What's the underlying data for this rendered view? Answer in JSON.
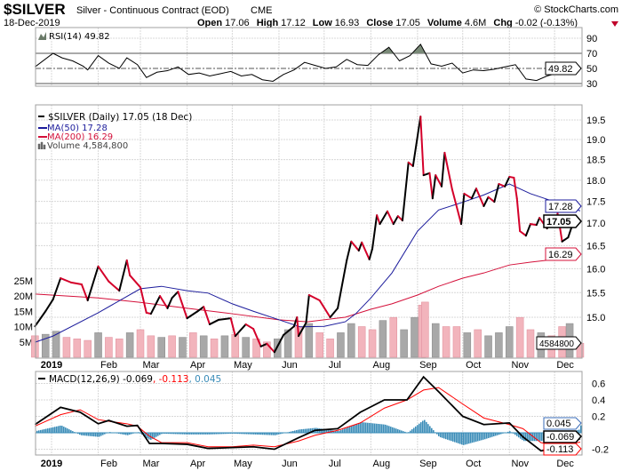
{
  "header": {
    "symbol": "$SILVER",
    "name": "Silver - Continuous Contract (EOD)",
    "exchange": "CME",
    "copyright": "© StockCharts.com",
    "date": "18-Dec-2019",
    "open_label": "Open",
    "open": "17.06",
    "high_label": "High",
    "high": "17.12",
    "low_label": "Low",
    "low": "16.93",
    "close_label": "Close",
    "close": "17.05",
    "volume_label": "Volume",
    "volume": "4.6M",
    "chg_label": "Chg",
    "chg": "-0.02 (-0.13%)",
    "chg_direction": "down"
  },
  "colors": {
    "up": "#000000",
    "down": "#d4002a",
    "ma50": "#1c1c9c",
    "ma200": "#d4103a",
    "vol_up": "#a8a8a8",
    "vol_down": "#f2b4bc",
    "macd": "#000000",
    "signal": "#ff0000",
    "hist": "#3a8cb8",
    "rsi_fill": "#7a8a78"
  },
  "chart_data": [
    {
      "type": "line",
      "panel": "rsi",
      "legend": "RSI(14) 49.82",
      "last_value": "49.82",
      "y_ticks": [
        "90",
        "70",
        "50",
        "30"
      ],
      "overbought": 70,
      "oversold": 30,
      "ylim": [
        10,
        100
      ],
      "points": [
        [
          "2018-12-21",
          52
        ],
        [
          "2019-01-02",
          70
        ],
        [
          "2019-01-08",
          64
        ],
        [
          "2019-01-15",
          60
        ],
        [
          "2019-01-22",
          53
        ],
        [
          "2019-01-25",
          48
        ],
        [
          "2019-02-01",
          67
        ],
        [
          "2019-02-08",
          57
        ],
        [
          "2019-02-15",
          50
        ],
        [
          "2019-02-20",
          64
        ],
        [
          "2019-02-27",
          55
        ],
        [
          "2019-03-05",
          38
        ],
        [
          "2019-03-12",
          45
        ],
        [
          "2019-03-19",
          47
        ],
        [
          "2019-03-26",
          52
        ],
        [
          "2019-04-02",
          42
        ],
        [
          "2019-04-09",
          44
        ],
        [
          "2019-04-16",
          40
        ],
        [
          "2019-04-23",
          43
        ],
        [
          "2019-04-30",
          46
        ],
        [
          "2019-05-07",
          40
        ],
        [
          "2019-05-14",
          42
        ],
        [
          "2019-05-21",
          35
        ],
        [
          "2019-05-28",
          33
        ],
        [
          "2019-06-04",
          42
        ],
        [
          "2019-06-11",
          48
        ],
        [
          "2019-06-18",
          58
        ],
        [
          "2019-06-25",
          54
        ],
        [
          "2019-07-02",
          50
        ],
        [
          "2019-07-09",
          52
        ],
        [
          "2019-07-16",
          62
        ],
        [
          "2019-07-23",
          55
        ],
        [
          "2019-07-30",
          54
        ],
        [
          "2019-08-06",
          68
        ],
        [
          "2019-08-13",
          78
        ],
        [
          "2019-08-20",
          60
        ],
        [
          "2019-08-27",
          67
        ],
        [
          "2019-09-03",
          82
        ],
        [
          "2019-09-10",
          56
        ],
        [
          "2019-09-17",
          53
        ],
        [
          "2019-09-24",
          57
        ],
        [
          "2019-10-01",
          44
        ],
        [
          "2019-10-08",
          48
        ],
        [
          "2019-10-15",
          47
        ],
        [
          "2019-10-22",
          49
        ],
        [
          "2019-10-29",
          52
        ],
        [
          "2019-11-05",
          55
        ],
        [
          "2019-11-12",
          36
        ],
        [
          "2019-11-19",
          34
        ],
        [
          "2019-11-26",
          40
        ],
        [
          "2019-12-03",
          44
        ],
        [
          "2019-12-10",
          42
        ],
        [
          "2019-12-18",
          49.82
        ]
      ]
    },
    {
      "type": "line",
      "panel": "price",
      "scale": "log",
      "legend": {
        "price": "$SILVER (Daily) 17.05 (18 Dec)",
        "ma50": "MA(50) 17.28",
        "ma200": "MA(200) 16.29",
        "volume": "Volume 4,584,800"
      },
      "y_ticks": [
        "15.0",
        "15.5",
        "16.0",
        "16.5",
        "17.0",
        "17.5",
        "18.0",
        "18.5",
        "19.0",
        "19.5"
      ],
      "volume_ticks": [
        "5M",
        "10M",
        "15M",
        "20M",
        "25M"
      ],
      "x_ticks": [
        "2019",
        "Feb",
        "Mar",
        "Apr",
        "May",
        "Jun",
        "Jul",
        "Aug",
        "Sep",
        "Oct",
        "Nov",
        "Dec"
      ],
      "last_labels": {
        "ma50": "17.28",
        "close": "17.05",
        "ma200": "16.29",
        "volume": "4584800"
      },
      "close": [
        [
          "2018-12-21",
          14.82
        ],
        [
          "2018-12-28",
          15.12
        ],
        [
          "2019-01-02",
          15.36
        ],
        [
          "2019-01-07",
          15.8
        ],
        [
          "2019-01-14",
          15.71
        ],
        [
          "2019-01-21",
          15.67
        ],
        [
          "2019-01-25",
          15.34
        ],
        [
          "2019-02-01",
          16.05
        ],
        [
          "2019-02-08",
          15.73
        ],
        [
          "2019-02-15",
          15.54
        ],
        [
          "2019-02-20",
          16.18
        ],
        [
          "2019-02-22",
          15.86
        ],
        [
          "2019-03-01",
          15.61
        ],
        [
          "2019-03-05",
          15.09
        ],
        [
          "2019-03-08",
          15.07
        ],
        [
          "2019-03-14",
          15.43
        ],
        [
          "2019-03-19",
          15.18
        ],
        [
          "2019-03-22",
          15.39
        ],
        [
          "2019-03-26",
          15.52
        ],
        [
          "2019-04-01",
          14.98
        ],
        [
          "2019-04-08",
          15.12
        ],
        [
          "2019-04-12",
          15.21
        ],
        [
          "2019-04-16",
          14.86
        ],
        [
          "2019-04-22",
          14.95
        ],
        [
          "2019-04-30",
          14.98
        ],
        [
          "2019-05-03",
          14.63
        ],
        [
          "2019-05-10",
          14.86
        ],
        [
          "2019-05-15",
          14.77
        ],
        [
          "2019-05-20",
          14.43
        ],
        [
          "2019-05-24",
          14.48
        ],
        [
          "2019-05-29",
          14.32
        ],
        [
          "2019-06-04",
          14.65
        ],
        [
          "2019-06-11",
          14.82
        ],
        [
          "2019-06-13",
          15.0
        ],
        [
          "2019-06-14",
          14.63
        ],
        [
          "2019-06-19",
          14.89
        ],
        [
          "2019-06-21",
          15.45
        ],
        [
          "2019-06-28",
          15.34
        ],
        [
          "2019-07-05",
          15.0
        ],
        [
          "2019-07-10",
          15.18
        ],
        [
          "2019-07-16",
          16.18
        ],
        [
          "2019-07-19",
          16.59
        ],
        [
          "2019-07-24",
          16.39
        ],
        [
          "2019-07-26",
          16.57
        ],
        [
          "2019-07-31",
          16.2
        ],
        [
          "2019-08-02",
          16.43
        ],
        [
          "2019-08-05",
          17.18
        ],
        [
          "2019-08-07",
          16.98
        ],
        [
          "2019-08-12",
          17.27
        ],
        [
          "2019-08-16",
          16.98
        ],
        [
          "2019-08-19",
          17.16
        ],
        [
          "2019-08-22",
          17.06
        ],
        [
          "2019-08-26",
          18.43
        ],
        [
          "2019-08-29",
          18.34
        ],
        [
          "2019-09-03",
          19.59
        ],
        [
          "2019-09-05",
          18.12
        ],
        [
          "2019-09-09",
          18.17
        ],
        [
          "2019-09-11",
          17.57
        ],
        [
          "2019-09-13",
          18.12
        ],
        [
          "2019-09-17",
          17.85
        ],
        [
          "2019-09-19",
          18.67
        ],
        [
          "2019-09-24",
          17.78
        ],
        [
          "2019-09-30",
          16.98
        ],
        [
          "2019-10-02",
          17.68
        ],
        [
          "2019-10-07",
          17.57
        ],
        [
          "2019-10-10",
          17.8
        ],
        [
          "2019-10-15",
          17.39
        ],
        [
          "2019-10-18",
          17.6
        ],
        [
          "2019-10-22",
          17.49
        ],
        [
          "2019-10-25",
          17.91
        ],
        [
          "2019-10-29",
          17.85
        ],
        [
          "2019-11-01",
          18.08
        ],
        [
          "2019-11-04",
          18.06
        ],
        [
          "2019-11-06",
          17.57
        ],
        [
          "2019-11-08",
          16.82
        ],
        [
          "2019-11-12",
          16.72
        ],
        [
          "2019-11-15",
          16.98
        ],
        [
          "2019-11-19",
          16.96
        ],
        [
          "2019-11-21",
          17.12
        ],
        [
          "2019-11-26",
          16.88
        ],
        [
          "2019-11-29",
          17.08
        ],
        [
          "2019-12-02",
          16.96
        ],
        [
          "2019-12-03",
          17.22
        ],
        [
          "2019-12-04",
          17.02
        ],
        [
          "2019-12-06",
          16.59
        ],
        [
          "2019-12-10",
          16.68
        ],
        [
          "2019-12-13",
          16.98
        ],
        [
          "2019-12-16",
          17.12
        ],
        [
          "2019-12-18",
          17.05
        ]
      ],
      "ma50": [
        [
          "2018-12-21",
          14.51
        ],
        [
          "2019-01-02",
          14.63
        ],
        [
          "2019-02-01",
          15.09
        ],
        [
          "2019-03-01",
          15.58
        ],
        [
          "2019-03-15",
          15.63
        ],
        [
          "2019-04-01",
          15.54
        ],
        [
          "2019-04-15",
          15.49
        ],
        [
          "2019-05-01",
          15.27
        ],
        [
          "2019-05-15",
          15.12
        ],
        [
          "2019-06-01",
          14.95
        ],
        [
          "2019-06-15",
          14.81
        ],
        [
          "2019-07-01",
          14.82
        ],
        [
          "2019-07-15",
          14.91
        ],
        [
          "2019-07-22",
          15.07
        ],
        [
          "2019-08-01",
          15.39
        ],
        [
          "2019-08-15",
          15.91
        ],
        [
          "2019-09-01",
          16.82
        ],
        [
          "2019-09-15",
          17.3
        ],
        [
          "2019-10-01",
          17.48
        ],
        [
          "2019-10-15",
          17.65
        ],
        [
          "2019-11-01",
          17.91
        ],
        [
          "2019-11-15",
          17.68
        ],
        [
          "2019-12-01",
          17.49
        ],
        [
          "2019-12-10",
          17.36
        ],
        [
          "2019-12-18",
          17.28
        ]
      ],
      "ma200": [
        [
          "2018-12-21",
          15.47
        ],
        [
          "2019-02-01",
          15.39
        ],
        [
          "2019-03-01",
          15.3
        ],
        [
          "2019-04-01",
          15.18
        ],
        [
          "2019-05-01",
          15.07
        ],
        [
          "2019-06-01",
          14.95
        ],
        [
          "2019-06-20",
          14.91
        ],
        [
          "2019-07-15",
          15.0
        ],
        [
          "2019-08-01",
          15.16
        ],
        [
          "2019-08-15",
          15.27
        ],
        [
          "2019-09-01",
          15.45
        ],
        [
          "2019-09-15",
          15.63
        ],
        [
          "2019-10-01",
          15.8
        ],
        [
          "2019-10-15",
          15.91
        ],
        [
          "2019-11-01",
          16.08
        ],
        [
          "2019-11-15",
          16.14
        ],
        [
          "2019-12-01",
          16.2
        ],
        [
          "2019-12-18",
          16.29
        ]
      ],
      "volume_millions": [
        [
          "2018-12-21",
          7,
          "down"
        ],
        [
          "2018-12-28",
          7.5,
          "up"
        ],
        [
          "2019-01-04",
          8.5,
          "up"
        ],
        [
          "2019-01-11",
          6.5,
          "down"
        ],
        [
          "2019-01-18",
          6,
          "down"
        ],
        [
          "2019-01-25",
          5.5,
          "down"
        ],
        [
          "2019-02-01",
          8,
          "up"
        ],
        [
          "2019-02-08",
          6.5,
          "down"
        ],
        [
          "2019-02-15",
          6,
          "down"
        ],
        [
          "2019-02-22",
          8,
          "up"
        ],
        [
          "2019-03-01",
          9,
          "down"
        ],
        [
          "2019-03-08",
          7,
          "down"
        ],
        [
          "2019-03-15",
          6.5,
          "up"
        ],
        [
          "2019-03-22",
          7,
          "down"
        ],
        [
          "2019-03-29",
          6.5,
          "up"
        ],
        [
          "2019-04-05",
          8,
          "down"
        ],
        [
          "2019-04-12",
          7,
          "up"
        ],
        [
          "2019-04-19",
          6,
          "down"
        ],
        [
          "2019-04-26",
          7,
          "up"
        ],
        [
          "2019-05-03",
          7.5,
          "down"
        ],
        [
          "2019-05-10",
          6.5,
          "up"
        ],
        [
          "2019-05-17",
          6,
          "down"
        ],
        [
          "2019-05-24",
          5,
          "down"
        ],
        [
          "2019-05-31",
          6,
          "up"
        ],
        [
          "2019-06-07",
          9,
          "up"
        ],
        [
          "2019-06-14",
          10,
          "down"
        ],
        [
          "2019-06-21",
          11,
          "up"
        ],
        [
          "2019-06-28",
          8,
          "down"
        ],
        [
          "2019-07-05",
          6,
          "down"
        ],
        [
          "2019-07-12",
          8,
          "up"
        ],
        [
          "2019-07-19",
          11,
          "up"
        ],
        [
          "2019-07-26",
          10,
          "down"
        ],
        [
          "2019-08-02",
          9,
          "down"
        ],
        [
          "2019-08-09",
          12,
          "up"
        ],
        [
          "2019-08-16",
          13,
          "down"
        ],
        [
          "2019-08-23",
          9,
          "up"
        ],
        [
          "2019-08-30",
          13,
          "up"
        ],
        [
          "2019-09-04",
          17,
          "down"
        ],
        [
          "2019-09-06",
          18,
          "down"
        ],
        [
          "2019-09-13",
          11,
          "up"
        ],
        [
          "2019-09-20",
          10,
          "down"
        ],
        [
          "2019-09-27",
          10,
          "down"
        ],
        [
          "2019-10-04",
          8,
          "up"
        ],
        [
          "2019-10-11",
          9,
          "down"
        ],
        [
          "2019-10-18",
          7,
          "up"
        ],
        [
          "2019-10-25",
          8,
          "up"
        ],
        [
          "2019-11-01",
          10,
          "up"
        ],
        [
          "2019-11-08",
          13,
          "down"
        ],
        [
          "2019-11-15",
          9,
          "down"
        ],
        [
          "2019-11-22",
          8,
          "up"
        ],
        [
          "2019-11-29",
          7,
          "down"
        ],
        [
          "2019-12-06",
          10,
          "down"
        ],
        [
          "2019-12-11",
          11,
          "up"
        ],
        [
          "2019-12-18",
          4.58,
          "down"
        ]
      ]
    },
    {
      "type": "line",
      "panel": "macd",
      "legend": {
        "name": "MACD(12,26,9)",
        "macd": "-0.069",
        "signal": ", -0.113",
        "hist": ", 0.045"
      },
      "last_labels": {
        "hist": "0.045",
        "macd": "-0.069",
        "signal": "-0.113"
      },
      "y_ticks": [
        "0.6",
        "0.4",
        "0.2",
        "-0.2"
      ],
      "points": [
        [
          "2018-12-21",
          0.1,
          0.08
        ],
        [
          "2019-01-07",
          0.31,
          0.22
        ],
        [
          "2019-01-20",
          0.25,
          0.28
        ],
        [
          "2019-02-01",
          0.11,
          0.16
        ],
        [
          "2019-02-08",
          0.15,
          0.14
        ],
        [
          "2019-02-20",
          0.08,
          0.11
        ],
        [
          "2019-02-27",
          0.09,
          0.08
        ],
        [
          "2019-03-07",
          -0.13,
          -0.04
        ],
        [
          "2019-03-15",
          -0.13,
          -0.12
        ],
        [
          "2019-04-01",
          -0.14,
          -0.12
        ],
        [
          "2019-04-15",
          -0.19,
          -0.17
        ],
        [
          "2019-05-01",
          -0.18,
          -0.17
        ],
        [
          "2019-05-15",
          -0.17,
          -0.15
        ],
        [
          "2019-05-29",
          -0.2,
          -0.17
        ],
        [
          "2019-06-14",
          -0.06,
          -0.1
        ],
        [
          "2019-06-25",
          0.03,
          -0.03
        ],
        [
          "2019-07-10",
          0.05,
          0.03
        ],
        [
          "2019-07-25",
          0.25,
          0.12
        ],
        [
          "2019-08-10",
          0.4,
          0.3
        ],
        [
          "2019-08-25",
          0.4,
          0.4
        ],
        [
          "2019-09-05",
          0.68,
          0.52
        ],
        [
          "2019-09-15",
          0.5,
          0.55
        ],
        [
          "2019-10-01",
          0.2,
          0.35
        ],
        [
          "2019-10-15",
          0.1,
          0.18
        ],
        [
          "2019-11-01",
          0.12,
          0.1
        ],
        [
          "2019-11-10",
          -0.05,
          0.05
        ],
        [
          "2019-11-22",
          -0.22,
          -0.12
        ],
        [
          "2019-12-05",
          -0.18,
          -0.16
        ],
        [
          "2019-12-18",
          -0.069,
          -0.113
        ]
      ]
    }
  ]
}
